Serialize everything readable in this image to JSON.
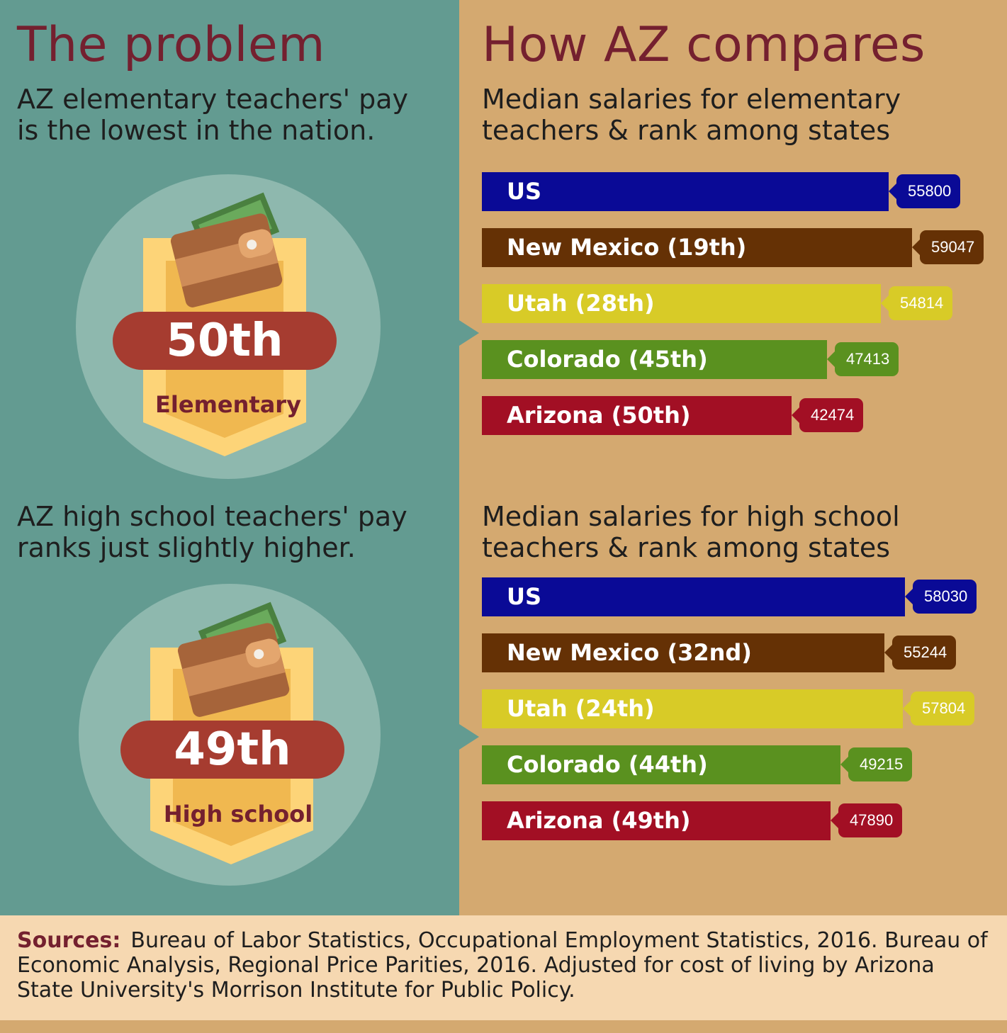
{
  "left": {
    "title": "The problem",
    "elementary": {
      "text": "AZ elementary teachers' pay\nis the lowest in the nation.",
      "rank": "50th",
      "label": "Elementary"
    },
    "high_school": {
      "text": "AZ high school teachers' pay\nranks just slightly higher.",
      "rank": "49th",
      "label": "High school"
    }
  },
  "right": {
    "title": "How AZ compares",
    "elementary_subtitle": "Median salaries for elementary\nteachers & rank among states",
    "high_school_subtitle": "Median salaries for high school\nteachers & rank among states"
  },
  "chart_data": [
    {
      "type": "bar",
      "orientation": "horizontal",
      "title": "Median salaries for elementary teachers & rank among states",
      "categories": [
        "US",
        "New Mexico (19th)",
        "Utah (28th)",
        "Colorado (45th)",
        "Arizona (50th)"
      ],
      "values": [
        55800,
        59047,
        54814,
        47413,
        42474
      ],
      "colors": [
        "#0a0a96",
        "#653105",
        "#d8cb27",
        "#5a911f",
        "#a20f24"
      ],
      "grid": false
    },
    {
      "type": "bar",
      "orientation": "horizontal",
      "title": "Median salaries for high school teachers & rank among states",
      "categories": [
        "US",
        "New Mexico (32nd)",
        "Utah (24th)",
        "Colorado (44th)",
        "Arizona (49th)"
      ],
      "values": [
        58030,
        55244,
        57804,
        49215,
        47890
      ],
      "colors": [
        "#0a0a96",
        "#653105",
        "#d8cb27",
        "#5a911f",
        "#a20f24"
      ],
      "grid": false
    }
  ],
  "sources": {
    "label": "Sources:",
    "text": "Bureau of Labor Statistics, Occupational Employment Statistics, 2016. Bureau of Economic Analysis, Regional Price Parities, 2016. Adjusted for cost of living by Arizona State University's Morrison Institute for Public Policy."
  },
  "icons": [
    "wallet-icon",
    "money-icon"
  ]
}
